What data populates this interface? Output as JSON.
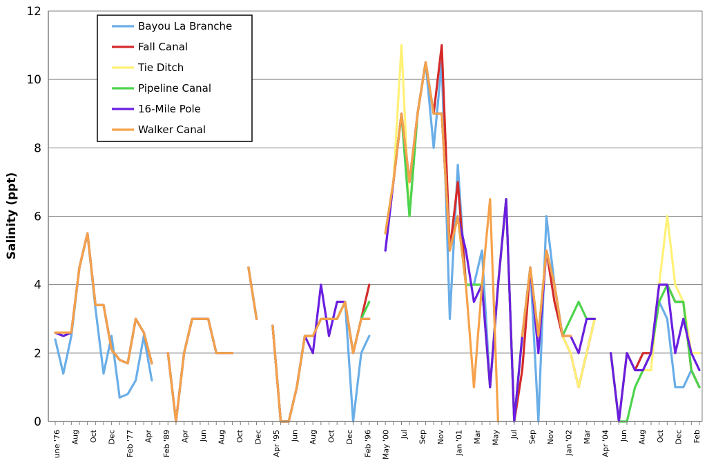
{
  "chart_data": {
    "type": "line",
    "title": "",
    "xlabel": "",
    "ylabel": "Salinity (ppt)",
    "ylim": [
      0,
      12
    ],
    "yticks": [
      "0",
      "2",
      "4",
      "6",
      "8",
      "10",
      "12"
    ],
    "grid": "horizontal",
    "legend_position": "top-left",
    "x_tick_labels": [
      "une '76",
      "Aug",
      "Oct",
      "Dec",
      "Feb '77",
      "Apr",
      "Feb '89",
      "Apr",
      "Jun",
      "Aug",
      "Oct",
      "Dec",
      "Apr '95",
      "Jun",
      "Aug",
      "Oct",
      "Dec",
      "Feb '96",
      "May '00",
      "Jul",
      "Sep",
      "Nov",
      "Jan '01",
      "Mar",
      "May",
      "Jul",
      "Sep",
      "Nov",
      "Jan '02",
      "Mar",
      "Apr '04",
      "Jun",
      "Aug",
      "Oct",
      "Dec",
      "Feb"
    ],
    "series": [
      {
        "name": "Bayou La Branche",
        "color": "#6aaee8",
        "values": [
          2.4,
          1.4,
          2.5,
          4.5,
          5.5,
          3.3,
          1.4,
          2.5,
          0.7,
          0.8,
          1.2,
          2.5,
          1.2,
          null,
          2.0,
          0.0,
          2.0,
          3.0,
          3.0,
          3.0,
          2.0,
          2.0,
          2.0,
          null,
          4.5,
          3.0,
          null,
          2.8,
          0.0,
          0.0,
          1.0,
          2.5,
          2.5,
          3.0,
          3.0,
          3.0,
          3.5,
          0.0,
          2.0,
          2.5,
          null,
          5.0,
          7.0,
          9.0,
          6.0,
          9.0,
          10.5,
          8.0,
          10.5,
          3.0,
          7.5,
          4.0,
          4.0,
          5.0,
          1.0,
          4.0,
          6.5,
          0.0,
          2.5,
          4.5,
          0.0,
          6.0,
          4.0,
          2.5,
          2.0,
          1.0,
          2.0,
          3.0,
          null,
          2.0,
          0.0,
          2.0,
          1.5,
          2.0,
          2.0,
          3.5,
          3.0,
          1.0,
          1.0,
          1.5,
          1.0
        ]
      },
      {
        "name": "Fall Canal",
        "color": "#d42a2a",
        "values": [
          2.6,
          2.5,
          2.6,
          4.5,
          5.5,
          3.4,
          3.4,
          2.1,
          1.8,
          1.7,
          3.0,
          2.6,
          1.7,
          null,
          2.0,
          0.0,
          2.0,
          3.0,
          3.0,
          3.0,
          2.0,
          2.0,
          2.0,
          null,
          4.5,
          3.0,
          null,
          2.8,
          0.0,
          0.0,
          1.0,
          2.5,
          2.5,
          3.0,
          3.0,
          3.0,
          3.5,
          2.0,
          3.0,
          4.0,
          null,
          5.5,
          7.0,
          9.0,
          7.0,
          9.0,
          10.5,
          9.0,
          11.0,
          5.0,
          7.0,
          4.0,
          4.0,
          4.0,
          1.0,
          4.0,
          6.5,
          0.0,
          1.5,
          4.5,
          2.5,
          5.0,
          3.5,
          2.5,
          2.0,
          1.0,
          2.0,
          3.0,
          null,
          2.0,
          0.0,
          2.0,
          1.5,
          2.0,
          2.0,
          4.0,
          4.0,
          3.5,
          3.5,
          1.5,
          1.0
        ]
      },
      {
        "name": "Tie Ditch",
        "color": "#fff176",
        "values": [
          2.6,
          2.5,
          2.6,
          4.5,
          5.5,
          3.4,
          3.4,
          2.1,
          1.8,
          1.7,
          3.0,
          2.6,
          1.7,
          null,
          2.0,
          0.0,
          2.0,
          3.0,
          3.0,
          3.0,
          2.0,
          2.0,
          2.0,
          null,
          4.5,
          3.0,
          null,
          2.8,
          0.0,
          0.0,
          1.0,
          2.5,
          2.5,
          3.0,
          3.0,
          3.0,
          3.5,
          2.0,
          3.0,
          3.0,
          null,
          5.5,
          7.0,
          11.0,
          6.0,
          9.0,
          10.5,
          9.0,
          9.0,
          5.0,
          6.0,
          4.0,
          4.0,
          4.0,
          1.0,
          4.0,
          6.5,
          0.0,
          2.5,
          4.5,
          2.5,
          5.0,
          4.0,
          2.5,
          2.0,
          1.0,
          2.0,
          3.0,
          null,
          2.0,
          0.0,
          2.0,
          1.5,
          1.5,
          1.5,
          4.0,
          6.0,
          4.0,
          3.5,
          2.0,
          2.0
        ]
      },
      {
        "name": "Pipeline Canal",
        "color": "#4cd44c",
        "values": [
          2.6,
          2.5,
          2.6,
          4.5,
          5.5,
          3.4,
          3.4,
          2.1,
          1.8,
          1.7,
          3.0,
          2.6,
          1.7,
          null,
          2.0,
          0.0,
          2.0,
          3.0,
          3.0,
          3.0,
          2.0,
          2.0,
          2.0,
          null,
          4.5,
          3.0,
          null,
          2.8,
          0.0,
          0.0,
          1.0,
          2.5,
          2.5,
          3.0,
          3.0,
          3.0,
          3.5,
          2.0,
          3.0,
          3.5,
          null,
          5.5,
          7.0,
          9.0,
          6.0,
          9.0,
          10.5,
          9.0,
          9.0,
          5.0,
          6.0,
          4.0,
          4.0,
          4.0,
          1.0,
          4.0,
          6.5,
          0.0,
          2.5,
          4.5,
          2.5,
          5.0,
          4.0,
          2.5,
          3.0,
          3.5,
          3.0,
          3.0,
          null,
          2.0,
          0.0,
          0.0,
          1.0,
          1.5,
          2.0,
          3.5,
          4.0,
          3.5,
          3.5,
          1.5,
          1.0
        ]
      },
      {
        "name": "16-Mile Pole",
        "color": "#6a1ee0",
        "values": [
          2.6,
          2.5,
          2.6,
          4.5,
          5.5,
          3.4,
          3.4,
          2.1,
          1.8,
          1.7,
          3.0,
          2.6,
          1.7,
          null,
          2.0,
          0.0,
          2.0,
          3.0,
          3.0,
          3.0,
          2.0,
          2.0,
          2.0,
          null,
          4.5,
          3.0,
          null,
          2.8,
          0.0,
          0.0,
          1.0,
          2.5,
          2.0,
          4.0,
          2.5,
          3.5,
          3.5,
          2.0,
          3.0,
          3.0,
          null,
          5.0,
          7.0,
          9.0,
          7.0,
          9.0,
          10.5,
          9.0,
          9.0,
          5.0,
          6.0,
          5.0,
          3.5,
          4.0,
          1.0,
          4.0,
          6.5,
          0.0,
          2.5,
          4.5,
          2.0,
          5.0,
          4.0,
          2.5,
          2.5,
          2.0,
          3.0,
          3.0,
          null,
          2.0,
          0.0,
          2.0,
          1.5,
          1.5,
          2.0,
          4.0,
          4.0,
          2.0,
          3.0,
          2.0,
          1.5
        ]
      },
      {
        "name": "Walker Canal",
        "color": "#f6a24a",
        "values": [
          2.6,
          2.6,
          2.6,
          4.5,
          5.5,
          3.4,
          3.4,
          2.1,
          1.8,
          1.7,
          3.0,
          2.6,
          1.7,
          null,
          2.0,
          0.0,
          2.0,
          3.0,
          3.0,
          3.0,
          2.0,
          2.0,
          2.0,
          null,
          4.5,
          3.0,
          null,
          2.8,
          0.0,
          0.0,
          1.0,
          2.5,
          2.5,
          3.0,
          3.0,
          3.0,
          3.5,
          2.0,
          3.0,
          3.0,
          null,
          5.5,
          7.0,
          9.0,
          7.0,
          9.0,
          10.5,
          9.0,
          9.0,
          5.0,
          6.0,
          4.0,
          1.0,
          4.0,
          6.5,
          0.0,
          null,
          null,
          2.5,
          4.5,
          2.5,
          5.0,
          4.0,
          2.5,
          2.5,
          null,
          null,
          null,
          null,
          null,
          null,
          null,
          null,
          null,
          null,
          null,
          null,
          null,
          null,
          null,
          null
        ]
      }
    ]
  }
}
